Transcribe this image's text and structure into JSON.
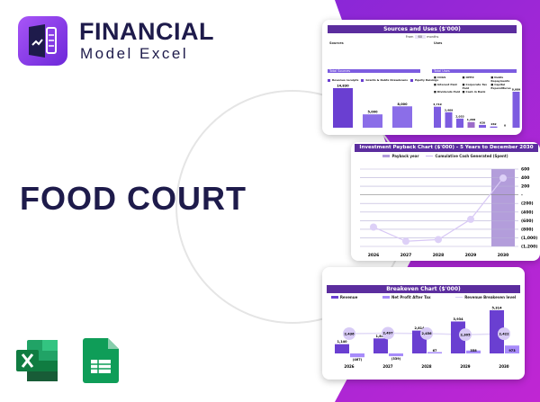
{
  "brand": {
    "line1": "FINANCIAL",
    "line2": "Model Excel"
  },
  "title": "FOOD COURT",
  "colors": {
    "navy": "#1e1b4b",
    "purple": "#6a3fd1",
    "light_purple": "#b39ddb",
    "header": "#5b2d9e"
  },
  "sources_uses": {
    "title": "Sources and Uses ($'000)",
    "from_label": "From",
    "from_value": "60",
    "months_label": "months",
    "sources_label": "Sources",
    "uses_label": "Uses",
    "total_sources": "Total Sources",
    "total_uses": "Total Uses",
    "sources_legend": [
      "Revenue receipts",
      "Grants & Debts Drawdowns",
      "Equity Raisings"
    ],
    "uses_legend": [
      "COGS",
      "OPEX",
      "Debts Repayments",
      "Interest Paid",
      "Corporate Tax Paid",
      "Capital Expenditures",
      "Dividends Paid",
      "Cash in Bank"
    ],
    "sources_values": [
      14830,
      5000,
      8000
    ],
    "sources_labels": [
      "14,830",
      "5,000",
      "8,000"
    ],
    "uses_values": [
      4719,
      3469,
      2053,
      1268,
      620,
      262,
      0,
      8089
    ],
    "uses_labels": [
      "4,719",
      "3,469",
      "2,053",
      "1,268",
      "620",
      "262",
      "0",
      "8,089"
    ]
  },
  "chart_data": [
    {
      "type": "line",
      "title": "Investment Payback Chart ($'000) - 5 Years to December 2030",
      "categories": [
        "2026",
        "2027",
        "2028",
        "2029",
        "2030"
      ],
      "series": [
        {
          "name": "Cumulative Cash Generated (Spent)",
          "values": [
            -750,
            -1080,
            -1040,
            -570,
            390
          ]
        }
      ],
      "payback_year": "2030",
      "payback_legend": "Payback year",
      "yticks": [
        "600",
        "400",
        "200",
        "-",
        "(200)",
        "(400)",
        "(600)",
        "(800)",
        "(1,000)",
        "(1,200)"
      ],
      "ylim": [
        -1200,
        600
      ]
    },
    {
      "type": "bar",
      "title": "Breakeven Chart ($'000)",
      "categories": [
        "2026",
        "2027",
        "2028",
        "2029",
        "2030"
      ],
      "series": [
        {
          "name": "Revenue",
          "values": [
            1140,
            1848,
            2814,
            3934,
            5314
          ],
          "labels": [
            "1,140",
            "1,848",
            "2,814",
            "3,934",
            "5,314"
          ]
        },
        {
          "name": "Net Profit After Tax",
          "values": [
            -467,
            -339,
            67,
            358,
            973
          ],
          "labels": [
            "(467)",
            "(339)",
            "67",
            "358",
            "973"
          ]
        },
        {
          "name": "Revenue Breakeven level",
          "values": [
            2436,
            2497,
            2456,
            2305,
            2422
          ],
          "labels": [
            "2,436",
            "2,497",
            "2,456",
            "2,305",
            "2,422"
          ]
        }
      ]
    }
  ]
}
